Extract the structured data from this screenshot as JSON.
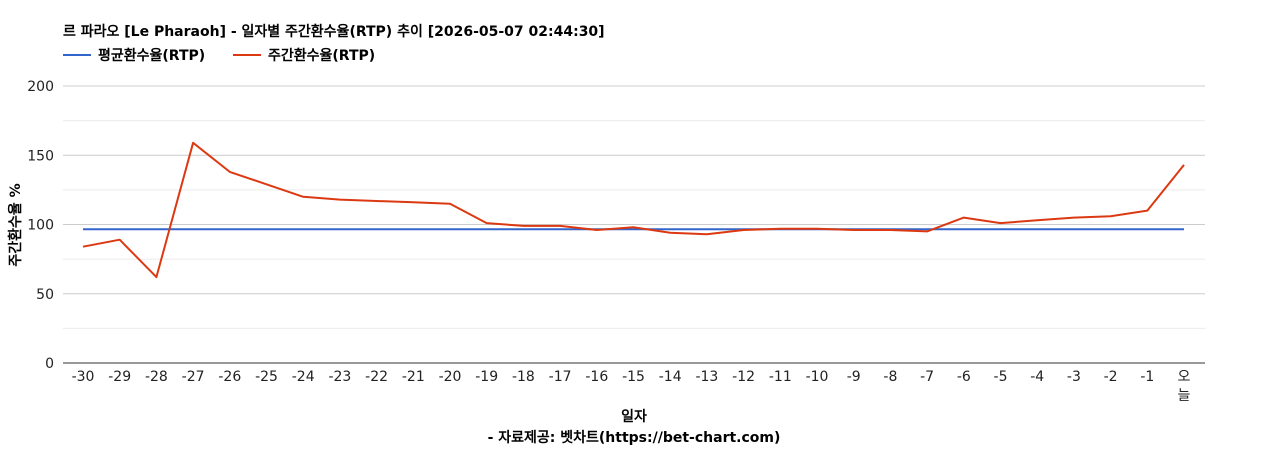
{
  "chart_data": {
    "type": "line",
    "title": "르 파라오 [Le Pharaoh] - 일자별 주간환수율(RTP) 추이 [2026-05-07 02:44:30]",
    "xlabel": "일자",
    "ylabel": "주간환수율 %",
    "source": "- 자료제공: 벳차트(https://bet-chart.com)",
    "ylim": [
      0,
      200
    ],
    "yticks": [
      "0",
      "50",
      "100",
      "150",
      "200"
    ],
    "categories": [
      "-30",
      "-29",
      "-28",
      "-27",
      "-26",
      "-25",
      "-24",
      "-23",
      "-22",
      "-21",
      "-20",
      "-19",
      "-18",
      "-17",
      "-16",
      "-15",
      "-14",
      "-13",
      "-12",
      "-11",
      "-10",
      "-9",
      "-8",
      "-7",
      "-6",
      "-5",
      "-4",
      "-3",
      "-2",
      "-1",
      "오늘"
    ],
    "grid": true,
    "legend_position": "top-left",
    "series": [
      {
        "name": "평균환수율(RTP)",
        "color": "#3366cc",
        "values": [
          96.5,
          96.5,
          96.5,
          96.5,
          96.5,
          96.5,
          96.5,
          96.5,
          96.5,
          96.5,
          96.5,
          96.5,
          96.5,
          96.5,
          96.5,
          96.5,
          96.5,
          96.5,
          96.5,
          96.5,
          96.5,
          96.5,
          96.5,
          96.5,
          96.5,
          96.5,
          96.5,
          96.5,
          96.5,
          96.5,
          96.5
        ]
      },
      {
        "name": "주간환수율(RTP)",
        "color": "#dc3912",
        "values": [
          84,
          89,
          62,
          159,
          138,
          129,
          120,
          118,
          117,
          116,
          115,
          101,
          99,
          99,
          96,
          98,
          94,
          93,
          96,
          97,
          97,
          96,
          96,
          95,
          105,
          101,
          103,
          105,
          106,
          110,
          143
        ]
      }
    ]
  }
}
